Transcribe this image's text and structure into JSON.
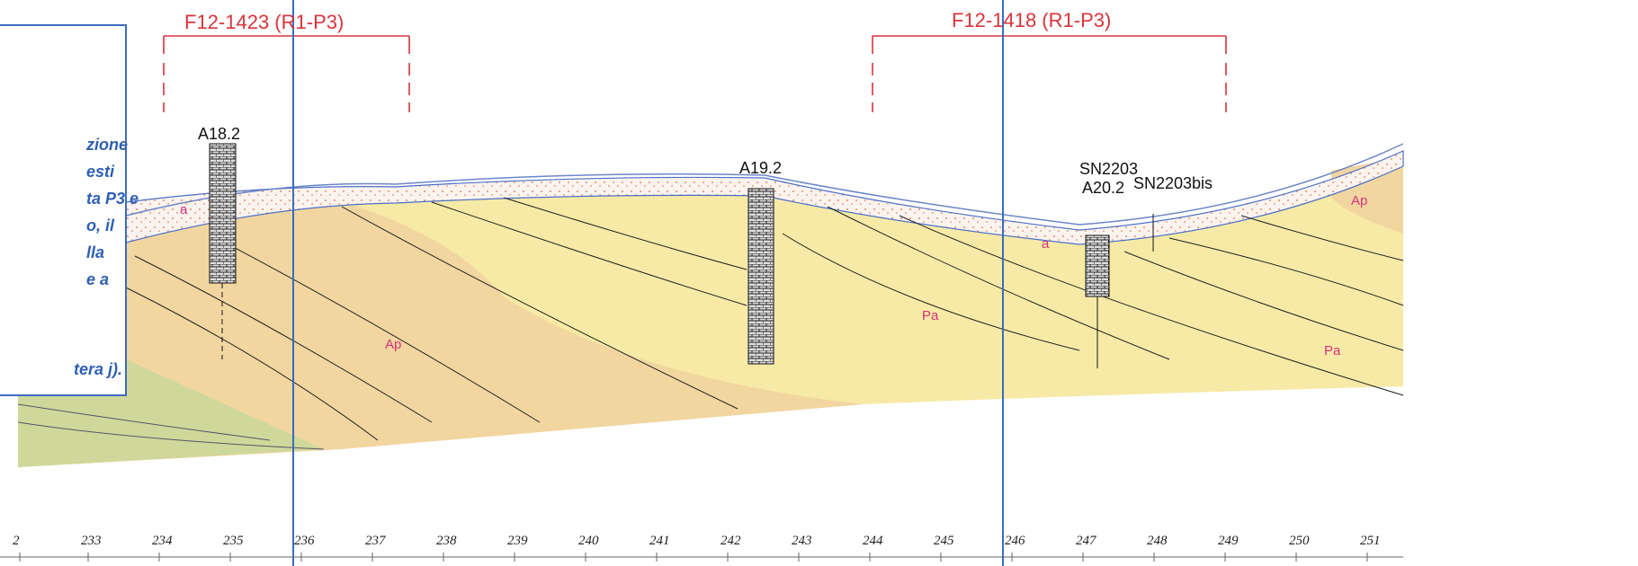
{
  "brackets": [
    "F12-1423  (R1-P3)",
    "F12-1418  (R1-P3)"
  ],
  "boreholes": [
    "A18.2",
    "A19.2",
    "SN2203",
    "A20.2",
    "SN2203bis"
  ],
  "unit_labels": [
    "a",
    "a",
    "Ap",
    "Pa",
    "Pa",
    "Ap"
  ],
  "axis_labels": [
    2,
    233,
    234,
    235,
    236,
    237,
    238,
    239,
    240,
    241,
    242,
    243,
    244,
    245,
    246,
    247,
    248,
    249,
    250,
    251
  ],
  "note_lines": [
    "zione",
    "esti",
    "ta P3 e",
    "o, il",
    "lla",
    "e a",
    "tera j)."
  ]
}
